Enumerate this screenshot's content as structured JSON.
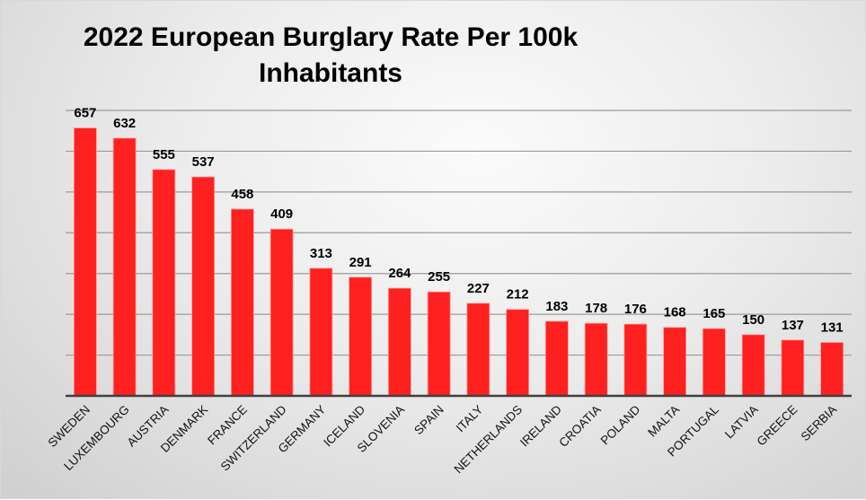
{
  "chart_data": {
    "type": "bar",
    "title_lines": [
      "2022 European Burglary Rate Per 100k",
      "Inhabitants"
    ],
    "categories": [
      "SWEDEN",
      "LUXEMBOURG",
      "AUSTRIA",
      "DENMARK",
      "FRANCE",
      "SWITZERLAND",
      "GERMANY",
      "ICELAND",
      "SLOVENIA",
      "SPAIN",
      "ITALY",
      "NETHERLANDS",
      "IRELAND",
      "CROATIA",
      "POLAND",
      "MALTA",
      "PORTUGAL",
      "LATVIA",
      "GREECE",
      "SERBIA"
    ],
    "values": [
      657,
      632,
      555,
      537,
      458,
      409,
      313,
      291,
      264,
      255,
      227,
      212,
      183,
      178,
      176,
      168,
      165,
      150,
      137,
      131
    ],
    "xlabel": "",
    "ylabel": "",
    "ylim": [
      0,
      700
    ],
    "ygrid_step": 100,
    "grid": true,
    "y_tick_labels_shown": false,
    "bar_color": "#ff2020",
    "legend": "none"
  }
}
